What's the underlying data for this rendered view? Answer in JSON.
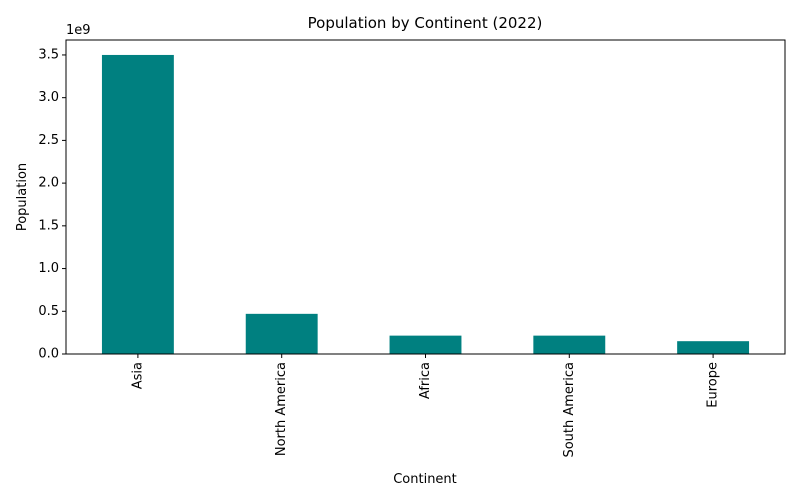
{
  "chart_data": {
    "type": "bar",
    "title": "Population by Continent (2022)",
    "xlabel": "Continent",
    "ylabel": "Population",
    "y_offset_label": "1e9",
    "categories": [
      "Asia",
      "North America",
      "Africa",
      "South America",
      "Europe"
    ],
    "values": [
      3500000000,
      470000000,
      215000000,
      215000000,
      150000000
    ],
    "ylim": [
      0,
      3675000000
    ],
    "yticks": [
      0,
      500000000,
      1000000000,
      1500000000,
      2000000000,
      2500000000,
      3000000000,
      3500000000
    ],
    "ytick_labels": [
      "0.0",
      "0.5",
      "1.0",
      "1.5",
      "2.0",
      "2.5",
      "3.0",
      "3.5"
    ],
    "bar_color": "#008080",
    "grid": false,
    "legend": "none"
  }
}
